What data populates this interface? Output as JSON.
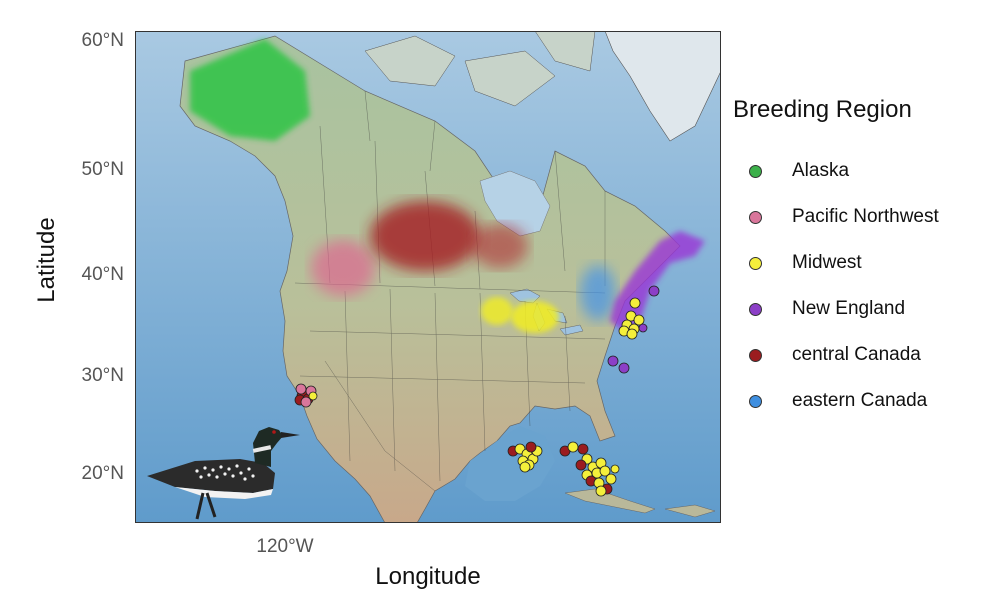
{
  "axes": {
    "x_title": "Longitude",
    "y_title": "Latitude",
    "lat_ticks": [
      "60°N",
      "50°N",
      "40°N",
      "30°N",
      "20°N"
    ],
    "lon_ticks": [
      "120°W"
    ]
  },
  "legend": {
    "title": "Breeding Region",
    "items": [
      {
        "label": "Alaska",
        "color": "#3cb04a"
      },
      {
        "label": "Pacific Northwest",
        "color": "#d9769b"
      },
      {
        "label": "Midwest",
        "color": "#f4ef3b"
      },
      {
        "label": "New England",
        "color": "#8c3fc7"
      },
      {
        "label": "central Canada",
        "color": "#9b1c1f"
      },
      {
        "label": "eastern Canada",
        "color": "#3f8fe0"
      }
    ]
  },
  "map": {
    "background": "shaded-relief",
    "ocean_color": "#6aa3cf",
    "land_color": "#b9c6a6",
    "illustration": "common-loon-icon"
  }
}
